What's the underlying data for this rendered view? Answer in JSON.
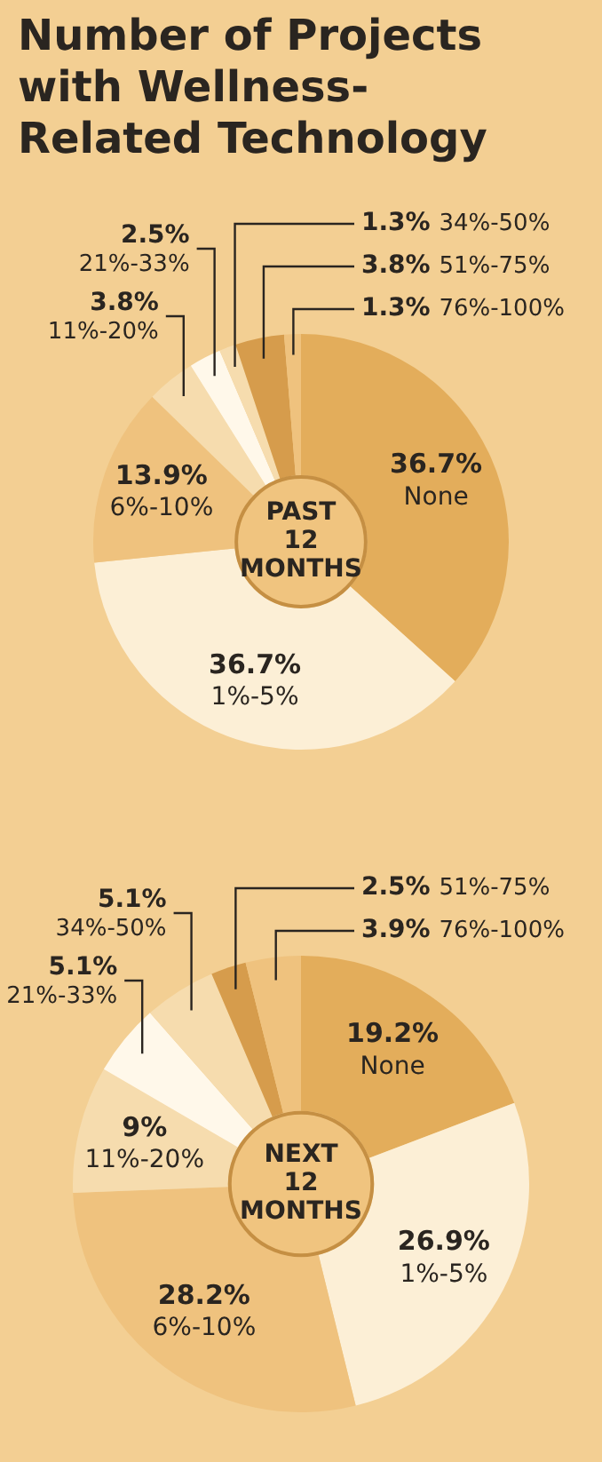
{
  "chart_data": [
    {
      "type": "donut",
      "title": "Number of Projects with Wellness-Related Technology",
      "subtitle": "PAST 12 MONTHS",
      "categories": [
        "None",
        "1%-5%",
        "6%-10%",
        "11%-20%",
        "21%-33%",
        "34%-50%",
        "51%-75%",
        "76%-100%"
      ],
      "values": [
        36.7,
        36.7,
        13.9,
        3.8,
        2.5,
        1.3,
        3.8,
        1.3
      ],
      "value_labels": [
        "36.7%",
        "36.7%",
        "13.9%",
        "3.8%",
        "2.5%",
        "1.3%",
        "3.8%",
        "1.3%"
      ],
      "colors": [
        "#e3ad5b",
        "#fcefd6",
        "#efc27e",
        "#f6dcae",
        "#fff8ea",
        "#f6dcae",
        "#d69c4c",
        "#efc27e"
      ],
      "legend": false
    },
    {
      "type": "donut",
      "subtitle": "NEXT 12 MONTHS",
      "categories": [
        "None",
        "1%-5%",
        "6%-10%",
        "11%-20%",
        "21%-33%",
        "34%-50%",
        "51%-75%",
        "76%-100%"
      ],
      "values": [
        19.2,
        26.9,
        28.2,
        9,
        5.1,
        5.1,
        2.5,
        3.9
      ],
      "value_labels": [
        "19.2%",
        "26.9%",
        "28.2%",
        "9%",
        "5.1%",
        "5.1%",
        "2.5%",
        "3.9%"
      ],
      "colors": [
        "#e3ad5b",
        "#fcefd6",
        "#efc27e",
        "#f6dcae",
        "#fff8ea",
        "#f6dcae",
        "#d69c4c",
        "#efc27e"
      ],
      "legend": false
    }
  ]
}
